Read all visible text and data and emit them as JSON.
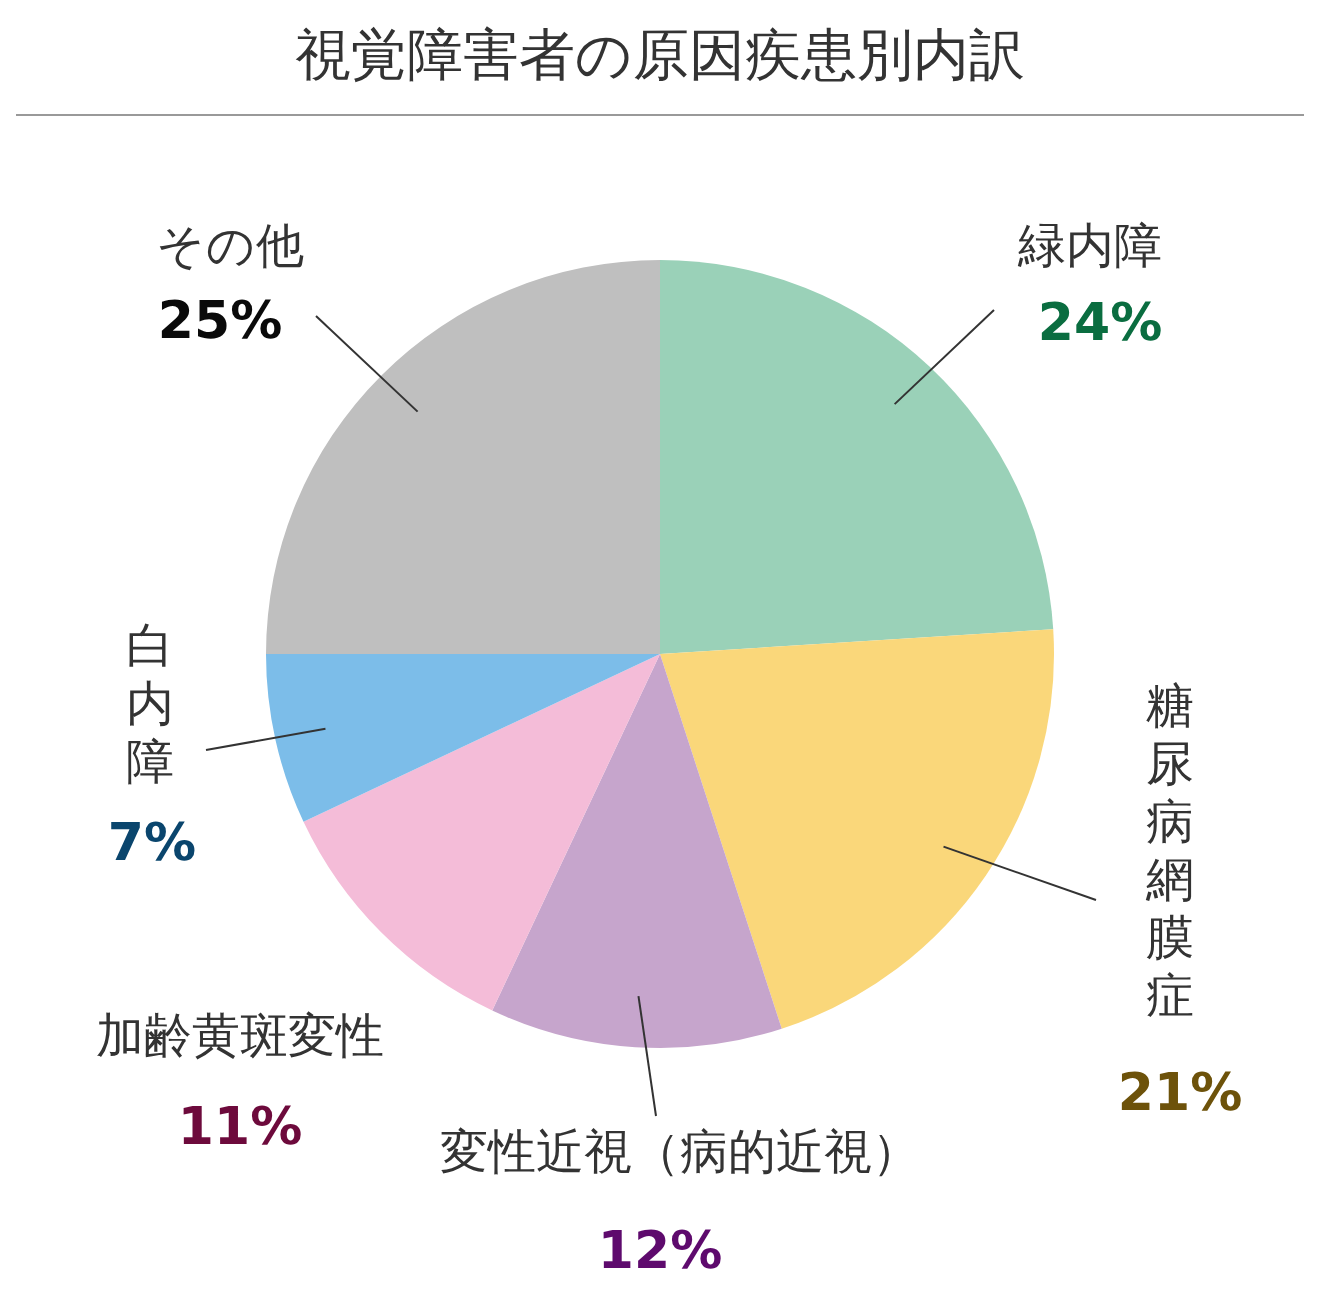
{
  "chart_data": {
    "type": "pie",
    "title": "視覚障害者の原因疾患別内訳",
    "categories": [
      "緑内障",
      "糖尿病網膜症",
      "変性近視（病的近視）",
      "加齢黄斑変性",
      "白内障",
      "その他"
    ],
    "values": [
      24,
      21,
      12,
      11,
      7,
      25
    ],
    "value_labels": [
      "24%",
      "21%",
      "12%",
      "11%",
      "7%",
      "25%"
    ],
    "colors": [
      "#9ad1b8",
      "#fad77a",
      "#c6a5cc",
      "#f4bcd8",
      "#7cbde9",
      "#bfbfbf"
    ],
    "legend": false
  }
}
